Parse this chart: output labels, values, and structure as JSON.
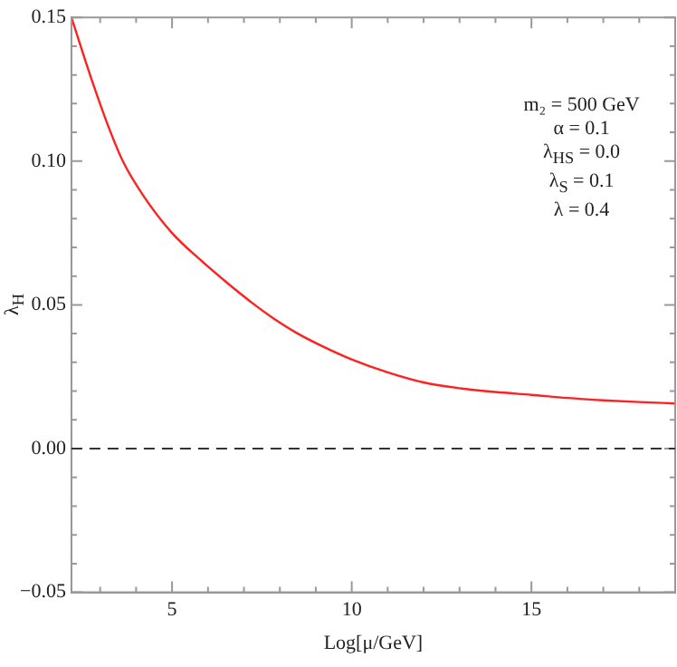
{
  "chart_data": {
    "type": "line",
    "xlabel": "Log[μ/GeV]",
    "ylabel": "λ$_{H}$",
    "x": [
      2.2,
      2.8,
      3.2,
      3.63,
      4.2,
      5,
      5.8,
      6.5,
      7.3,
      7.8,
      8.5,
      9.2,
      10,
      11,
      12,
      13,
      14,
      15,
      16,
      17,
      18,
      19
    ],
    "series": [
      {
        "color": "#ff2020",
        "values": [
          0.15,
          0.127,
          0.113,
          0.1,
          0.088,
          0.075,
          0.0655,
          0.058,
          0.05,
          0.0455,
          0.04,
          0.0355,
          0.031,
          0.0265,
          0.023,
          0.021,
          0.0197,
          0.0187,
          0.0176,
          0.0168,
          0.0162,
          0.0157
        ]
      }
    ],
    "xlim": [
      2.2,
      19
    ],
    "xticks": [
      {
        "value": 3,
        "label": null
      },
      {
        "value": 4,
        "label": null
      },
      5,
      {
        "value": 6,
        "label": null
      },
      {
        "value": 7,
        "label": null
      },
      {
        "value": 8,
        "label": null
      },
      {
        "value": 9,
        "label": null
      },
      10,
      {
        "value": 11,
        "label": null
      },
      {
        "value": 12,
        "label": null
      },
      {
        "value": 13,
        "label": null
      },
      {
        "value": 14,
        "label": null
      },
      15,
      {
        "value": 16,
        "label": null
      },
      {
        "value": 17,
        "label": null
      },
      {
        "value": 18,
        "label": null
      }
    ],
    "ylim": [
      -0.05,
      0.15
    ],
    "yticks": [
      {
        "value": -0.05,
        "label": "−0.05"
      },
      {
        "value": -0.04,
        "label": null
      },
      {
        "value": -0.03,
        "label": null
      },
      {
        "value": -0.02,
        "label": null
      },
      {
        "value": -0.01,
        "label": null
      },
      {
        "value": 0,
        "label": "0.00"
      },
      {
        "value": 0.01,
        "label": null
      },
      {
        "value": 0.02,
        "label": null
      },
      {
        "value": 0.03,
        "label": null
      },
      {
        "value": 0.04,
        "label": null
      },
      {
        "value": 0.05,
        "label": "0.05"
      },
      {
        "value": 0.06,
        "label": null
      },
      {
        "value": 0.07,
        "label": null
      },
      {
        "value": 0.08,
        "label": null
      },
      {
        "value": 0.09,
        "label": null
      },
      {
        "value": 0.1,
        "label": "0.10"
      },
      {
        "value": 0.11,
        "label": null
      },
      {
        "value": 0.12,
        "label": null
      },
      {
        "value": 0.13,
        "label": null
      },
      {
        "value": 0.14,
        "label": null
      },
      {
        "value": 0.15,
        "label": "0.15"
      }
    ],
    "ref_lines": [
      {
        "axis": "y",
        "value": 0,
        "color": "#333333",
        "line_style": "dashed"
      }
    ],
    "annotations": [
      "m₂ = 500 GeV",
      "α = 0.1",
      "λ$_{HS}$ = 0.0",
      "λ$_{S}$ = 0.1",
      "λ = 0.4"
    ],
    "grid": false,
    "legend": false,
    "marker": "none",
    "line_style": "solid"
  }
}
